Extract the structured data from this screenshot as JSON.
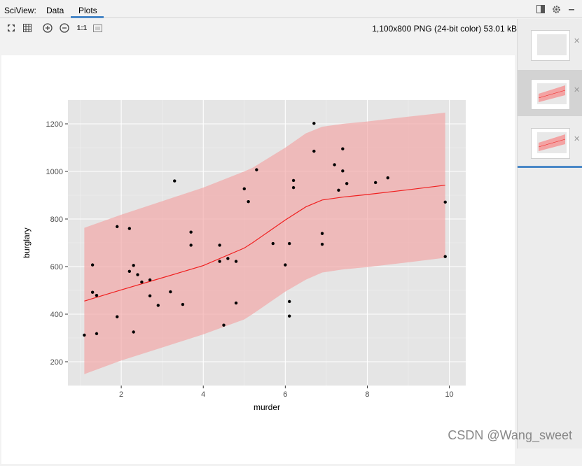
{
  "app_title": "SciView:",
  "tabs": [
    {
      "label": "Data"
    },
    {
      "label": "Plots"
    }
  ],
  "toolbar": {
    "actual_size_label": "1:1"
  },
  "image_info": "1,100x800 PNG (24-bit color) 53.01 kB",
  "watermark": "CSDN @Wang_sweet",
  "icons": {
    "fit": "fit-to-window-icon",
    "grid": "grid-icon",
    "zoom_in": "zoom-in-icon",
    "zoom_out": "zoom-out-icon",
    "background": "background-icon",
    "panel_toggle": "panel-toggle-icon",
    "settings": "gear-icon",
    "close": "close-icon"
  },
  "colors": {
    "panel_bg": "#e5e5e5",
    "ribbon": "#f3a3a3",
    "fit_line": "#f02020",
    "accent": "#4a88c7"
  },
  "chart_data": {
    "type": "scatter",
    "xlabel": "murder",
    "ylabel": "burglary",
    "xlim": [
      0.7,
      10.4
    ],
    "ylim": [
      100,
      1300
    ],
    "xticks": [
      2,
      4,
      6,
      8,
      10
    ],
    "yticks": [
      200,
      400,
      600,
      800,
      1000,
      1200
    ],
    "grid": true,
    "points": [
      [
        1.1,
        312
      ],
      [
        1.3,
        607
      ],
      [
        1.3,
        492
      ],
      [
        1.4,
        479
      ],
      [
        1.4,
        318
      ],
      [
        1.9,
        768
      ],
      [
        1.9,
        389
      ],
      [
        2.2,
        760
      ],
      [
        2.2,
        580
      ],
      [
        2.3,
        605
      ],
      [
        2.3,
        325
      ],
      [
        2.4,
        566
      ],
      [
        2.5,
        535
      ],
      [
        2.7,
        477
      ],
      [
        2.7,
        544
      ],
      [
        2.9,
        437
      ],
      [
        3.2,
        494
      ],
      [
        3.3,
        960
      ],
      [
        3.5,
        441
      ],
      [
        3.7,
        690
      ],
      [
        3.7,
        745
      ],
      [
        4.4,
        690
      ],
      [
        4.4,
        622
      ],
      [
        4.5,
        354
      ],
      [
        4.6,
        634
      ],
      [
        4.8,
        622
      ],
      [
        4.8,
        447
      ],
      [
        5.0,
        927
      ],
      [
        5.1,
        873
      ],
      [
        5.3,
        1007
      ],
      [
        5.7,
        697
      ],
      [
        6.0,
        607
      ],
      [
        6.1,
        697
      ],
      [
        6.1,
        453
      ],
      [
        6.1,
        392
      ],
      [
        6.2,
        962
      ],
      [
        6.2,
        932
      ],
      [
        6.7,
        1202
      ],
      [
        6.7,
        1085
      ],
      [
        6.9,
        739
      ],
      [
        6.9,
        694
      ],
      [
        7.2,
        1028
      ],
      [
        7.3,
        921
      ],
      [
        7.4,
        1095
      ],
      [
        7.4,
        1002
      ],
      [
        7.5,
        949
      ],
      [
        8.2,
        953
      ],
      [
        8.5,
        973
      ],
      [
        9.9,
        871
      ],
      [
        9.9,
        642
      ]
    ],
    "fit_line": [
      [
        1.1,
        455
      ],
      [
        2.0,
        502
      ],
      [
        3.0,
        553
      ],
      [
        4.0,
        604
      ],
      [
        5.0,
        678
      ],
      [
        5.2,
        700
      ],
      [
        6.0,
        796
      ],
      [
        6.5,
        851
      ],
      [
        6.9,
        880
      ],
      [
        7.4,
        892
      ],
      [
        8.0,
        903
      ],
      [
        9.0,
        923
      ],
      [
        9.9,
        942
      ]
    ],
    "ribbon_upper": [
      [
        1.1,
        763
      ],
      [
        2.0,
        818
      ],
      [
        3.0,
        875
      ],
      [
        4.0,
        932
      ],
      [
        5.0,
        1000
      ],
      [
        5.2,
        1015
      ],
      [
        6.0,
        1100
      ],
      [
        6.5,
        1160
      ],
      [
        6.9,
        1188
      ],
      [
        7.4,
        1200
      ],
      [
        8.0,
        1210
      ],
      [
        9.0,
        1230
      ],
      [
        9.9,
        1247
      ]
    ],
    "ribbon_lower": [
      [
        1.1,
        148
      ],
      [
        2.0,
        205
      ],
      [
        3.0,
        260
      ],
      [
        4.0,
        315
      ],
      [
        5.0,
        378
      ],
      [
        5.2,
        400
      ],
      [
        6.0,
        495
      ],
      [
        6.5,
        545
      ],
      [
        6.9,
        575
      ],
      [
        7.4,
        588
      ],
      [
        8.0,
        598
      ],
      [
        9.0,
        618
      ],
      [
        9.9,
        637
      ]
    ]
  }
}
